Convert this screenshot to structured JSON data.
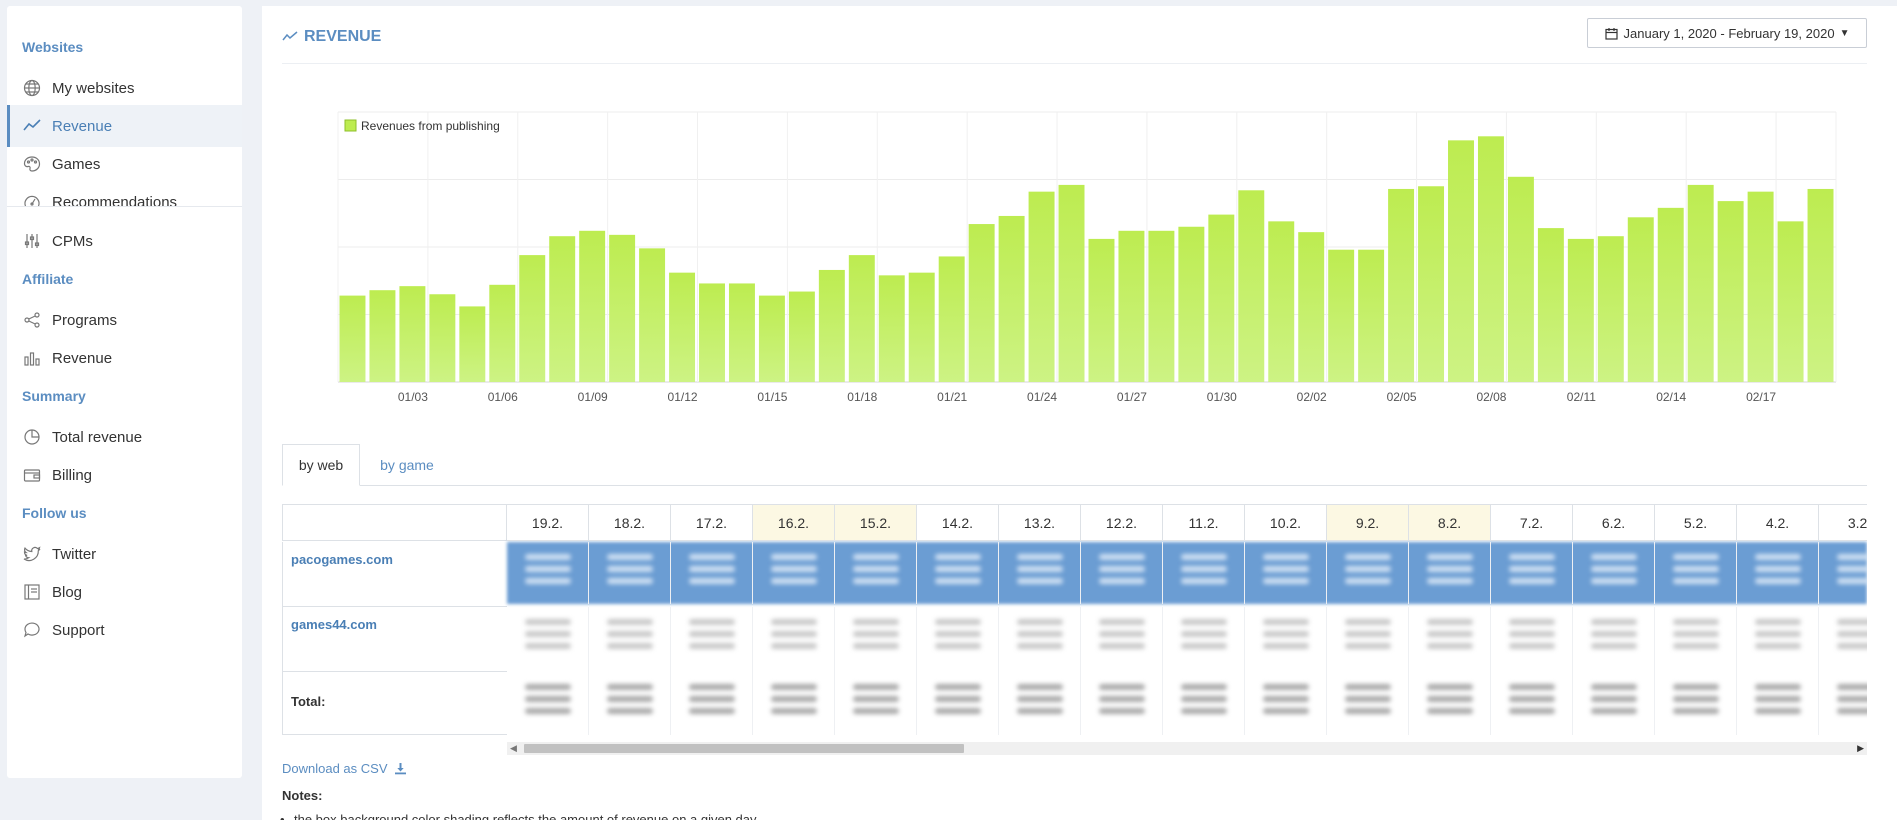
{
  "sidebar": {
    "sections": [
      {
        "title": "Websites",
        "items": [
          {
            "label": "My websites",
            "icon": "globe-icon"
          },
          {
            "label": "Revenue",
            "icon": "line-chart-icon",
            "active": true
          },
          {
            "label": "Games",
            "icon": "palette-icon"
          },
          {
            "label": "Recommendations",
            "icon": "gauge-icon"
          },
          {
            "label": "CPMs",
            "icon": "sliders-icon"
          }
        ]
      },
      {
        "title": "Affiliate",
        "items": [
          {
            "label": "Programs",
            "icon": "share-icon"
          },
          {
            "label": "Revenue",
            "icon": "bar-chart-icon"
          }
        ]
      },
      {
        "title": "Summary",
        "items": [
          {
            "label": "Total revenue",
            "icon": "pie-chart-icon"
          },
          {
            "label": "Billing",
            "icon": "wallet-icon"
          }
        ]
      },
      {
        "title": "Follow us",
        "items": [
          {
            "label": "Twitter",
            "icon": "twitter-icon"
          },
          {
            "label": "Blog",
            "icon": "book-icon"
          },
          {
            "label": "Support",
            "icon": "chat-icon"
          }
        ]
      }
    ]
  },
  "header": {
    "title": "REVENUE",
    "date_range": "January 1, 2020 - February 19, 2020"
  },
  "chart_data": {
    "type": "bar",
    "legend": "Revenues from publishing",
    "legend_position": "top-left",
    "grid": true,
    "color": "#bdec50",
    "ylim": [
      0,
      200
    ],
    "x_tick_labels": [
      "01/03",
      "01/06",
      "01/09",
      "01/12",
      "01/15",
      "01/18",
      "01/21",
      "01/24",
      "01/27",
      "01/30",
      "02/02",
      "02/05",
      "02/08",
      "02/11",
      "02/14",
      "02/17"
    ],
    "categories": [
      "01/01",
      "01/02",
      "01/03",
      "01/04",
      "01/05",
      "01/06",
      "01/07",
      "01/08",
      "01/09",
      "01/10",
      "01/11",
      "01/12",
      "01/13",
      "01/14",
      "01/15",
      "01/16",
      "01/17",
      "01/18",
      "01/19",
      "01/20",
      "01/21",
      "01/22",
      "01/23",
      "01/24",
      "01/25",
      "01/26",
      "01/27",
      "01/28",
      "01/29",
      "01/30",
      "01/31",
      "02/01",
      "02/02",
      "02/03",
      "02/04",
      "02/05",
      "02/06",
      "02/07",
      "02/08",
      "02/09",
      "02/10",
      "02/11",
      "02/12",
      "02/13",
      "02/14",
      "02/15",
      "02/16",
      "02/17",
      "02/18",
      "02/19"
    ],
    "values": [
      64,
      68,
      71,
      65,
      56,
      72,
      94,
      108,
      112,
      109,
      99,
      81,
      73,
      73,
      64,
      67,
      83,
      94,
      79,
      81,
      93,
      117,
      123,
      141,
      146,
      106,
      112,
      112,
      115,
      124,
      142,
      119,
      111,
      98,
      98,
      143,
      145,
      179,
      182,
      152,
      114,
      106,
      108,
      122,
      129,
      146,
      134,
      141,
      119,
      143
    ]
  },
  "tabs": [
    {
      "label": "by web",
      "active": true
    },
    {
      "label": "by game",
      "active": false
    }
  ],
  "table": {
    "dates": [
      "19.2.",
      "18.2.",
      "17.2.",
      "16.2.",
      "15.2.",
      "14.2.",
      "13.2.",
      "12.2.",
      "11.2.",
      "10.2.",
      "9.2.",
      "8.2.",
      "7.2.",
      "6.2.",
      "5.2.",
      "4.2.",
      "3.2."
    ],
    "weekend_dates": [
      "16.2.",
      "15.2.",
      "9.2.",
      "8.2."
    ],
    "rows": [
      {
        "site": "pacogames.com"
      },
      {
        "site": "games44.com"
      }
    ],
    "total_label": "Total:"
  },
  "download_label": "Download as CSV",
  "notes": {
    "title": "Notes:",
    "items": [
      "the box background color shading reflects the amount of revenue on a given day"
    ]
  }
}
